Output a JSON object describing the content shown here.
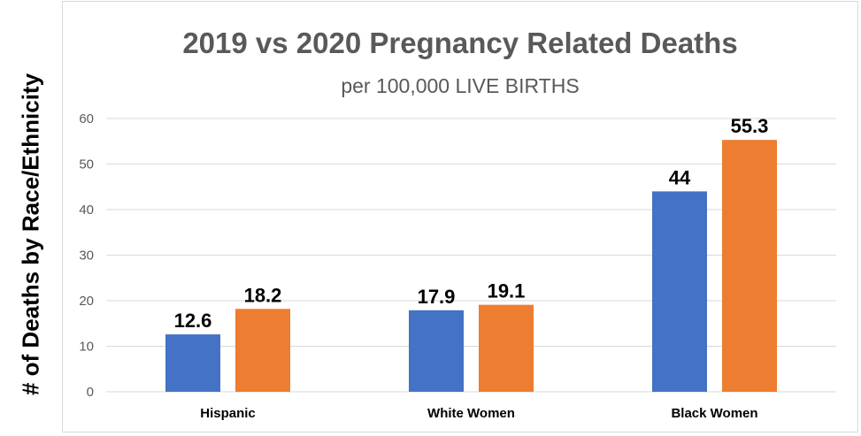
{
  "chart_data": {
    "type": "bar",
    "title": "2019 vs 2020 Pregnancy Related Deaths",
    "subtitle": "per 100,000 LIVE BIRTHS",
    "xlabel": "",
    "ylabel": "# of Deaths by Race/Ethnicity",
    "categories": [
      "Hispanic",
      "White Women",
      "Black Women"
    ],
    "series": [
      {
        "name": "2019",
        "color": "#4472C4",
        "values": [
          12.6,
          17.9,
          44
        ]
      },
      {
        "name": "2020",
        "color": "#ED7D31",
        "values": [
          18.2,
          19.1,
          55.3
        ]
      }
    ],
    "data_labels": [
      [
        "12.6",
        "17.9",
        "44"
      ],
      [
        "18.2",
        "19.1",
        "55.3"
      ]
    ],
    "yticks": [
      0,
      10,
      20,
      30,
      40,
      50,
      60
    ],
    "ylim": [
      0,
      60
    ],
    "grid": true
  }
}
